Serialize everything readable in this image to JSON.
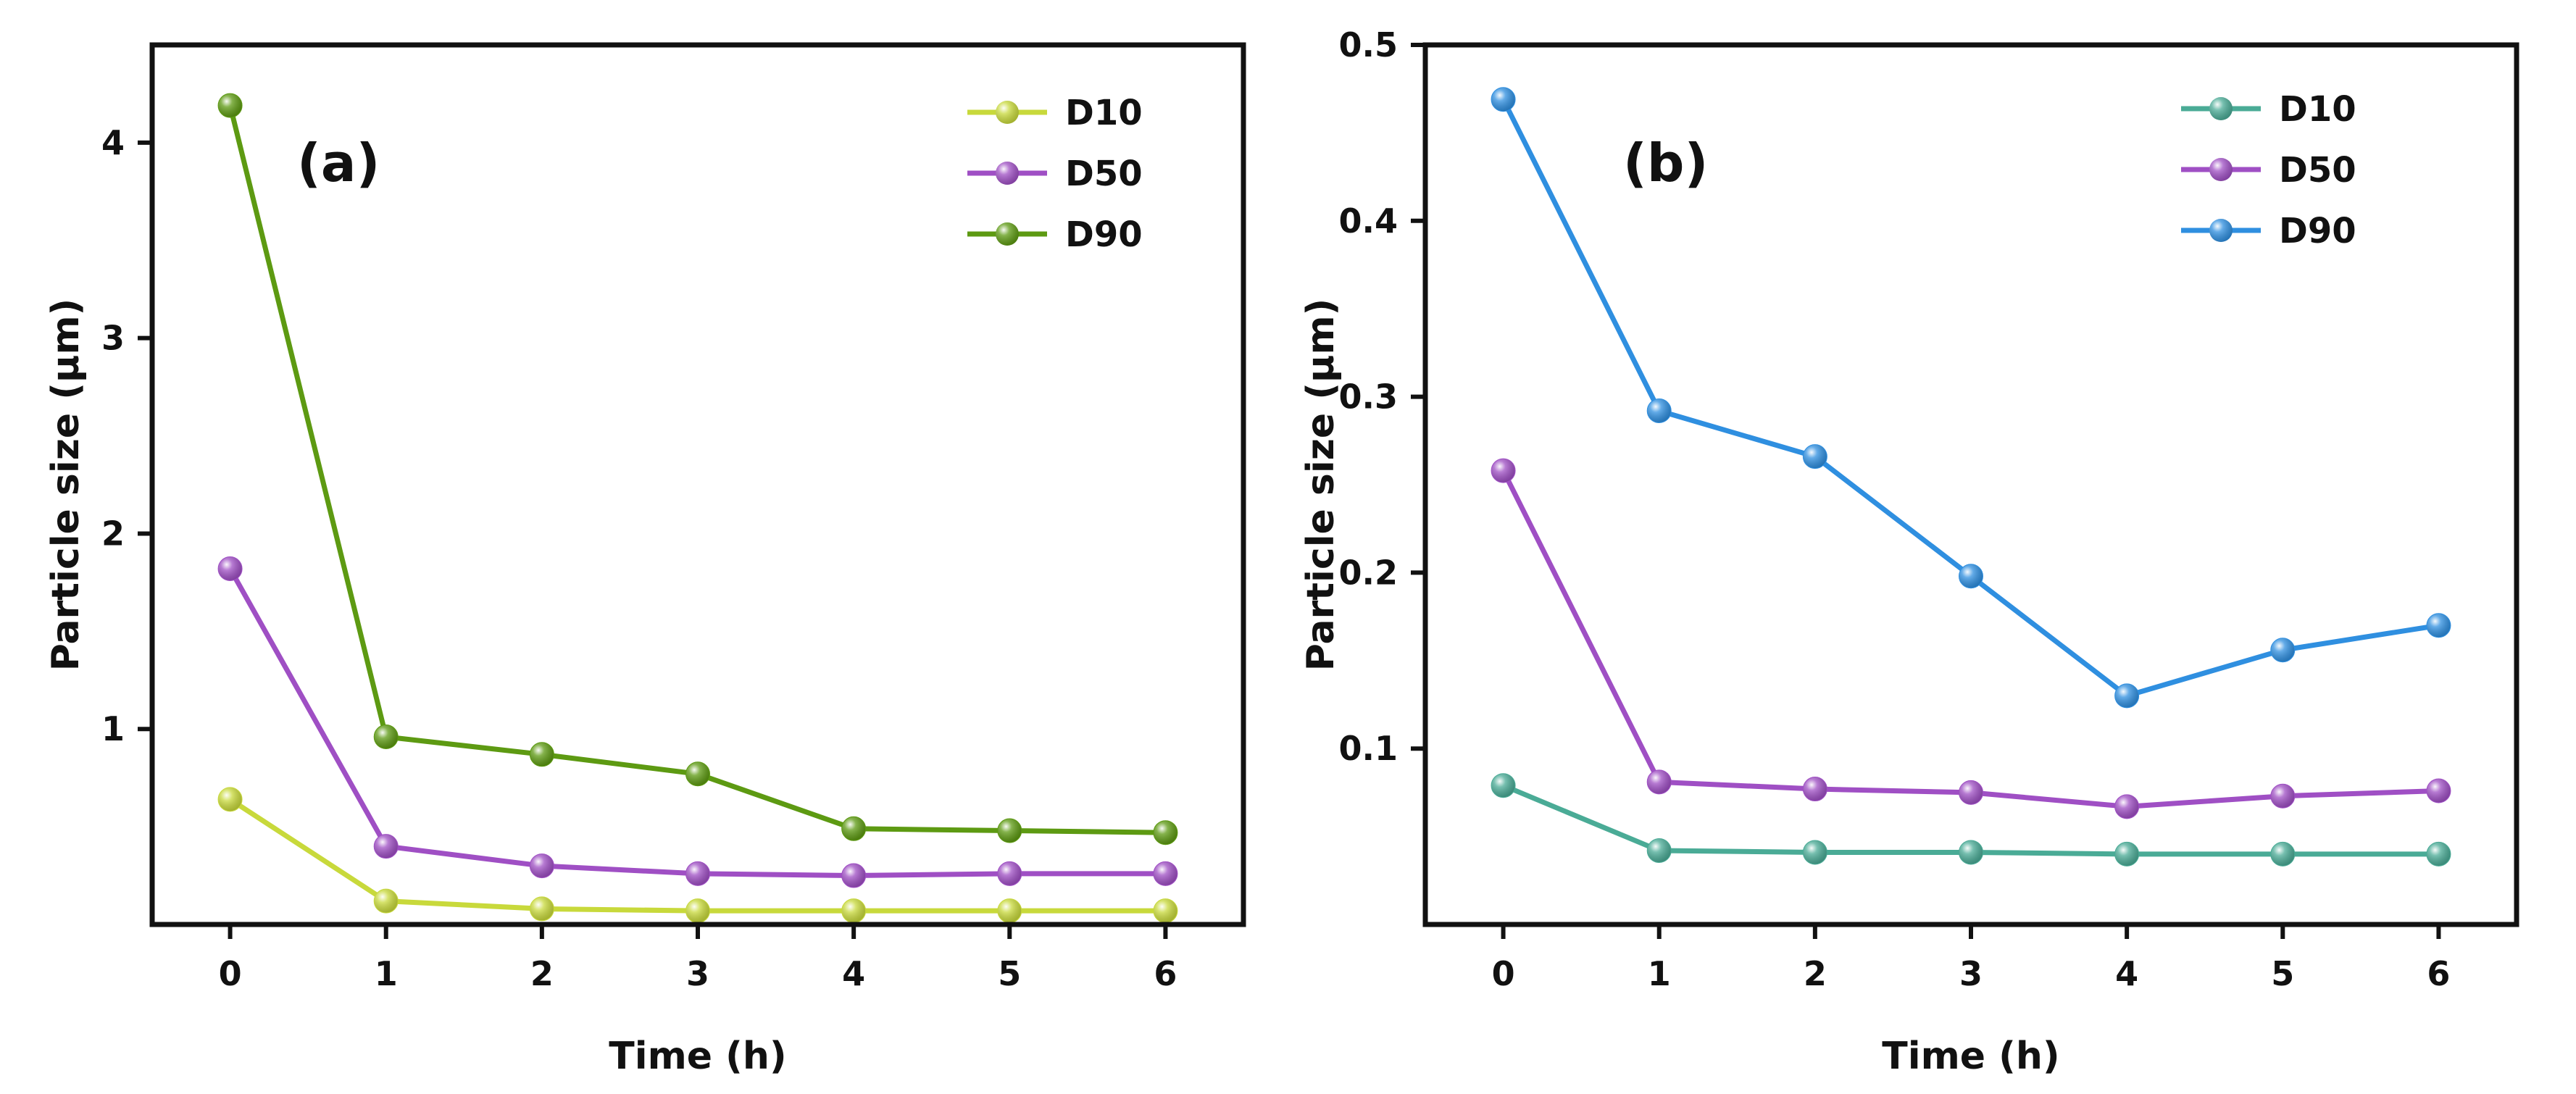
{
  "chart_data": [
    {
      "type": "line",
      "panel_label": "(a)",
      "title": "",
      "xlabel": "Time (h)",
      "ylabel": "Particle size (μm)",
      "x": [
        0,
        1,
        2,
        3,
        4,
        5,
        6
      ],
      "xlim": [
        -0.5,
        6.5
      ],
      "ylim": [
        0,
        4.5
      ],
      "xticks": [
        "0",
        "1",
        "2",
        "3",
        "4",
        "5",
        "6"
      ],
      "yticks": [
        1,
        2,
        3,
        4
      ],
      "ytick_labels": [
        "1",
        "2",
        "3",
        "4"
      ],
      "legend_position": "top-right",
      "grid": false,
      "series": [
        {
          "name": "D10",
          "color": "#c8d93b",
          "values": [
            0.64,
            0.12,
            0.08,
            0.07,
            0.07,
            0.07,
            0.07
          ]
        },
        {
          "name": "D50",
          "color": "#9f4fc4",
          "values": [
            1.82,
            0.4,
            0.3,
            0.26,
            0.25,
            0.26,
            0.26
          ]
        },
        {
          "name": "D90",
          "color": "#5d9a12",
          "values": [
            4.19,
            0.96,
            0.87,
            0.77,
            0.49,
            0.48,
            0.47
          ]
        }
      ]
    },
    {
      "type": "line",
      "panel_label": "(b)",
      "title": "",
      "xlabel": "Time (h)",
      "ylabel": "Particle size (μm)",
      "x": [
        0,
        1,
        2,
        3,
        4,
        5,
        6
      ],
      "xlim": [
        -0.5,
        6.5
      ],
      "ylim": [
        0,
        0.5
      ],
      "xticks": [
        "0",
        "1",
        "2",
        "3",
        "4",
        "5",
        "6"
      ],
      "yticks": [
        0.1,
        0.2,
        0.3,
        0.4,
        0.5
      ],
      "ytick_labels": [
        "0.1",
        "0.2",
        "0.3",
        "0.4",
        "0.5"
      ],
      "legend_position": "top-right",
      "grid": false,
      "series": [
        {
          "name": "D10",
          "color": "#4aab96",
          "values": [
            0.079,
            0.042,
            0.041,
            0.041,
            0.04,
            0.04,
            0.04
          ]
        },
        {
          "name": "D50",
          "color": "#9f4fc4",
          "values": [
            0.258,
            0.081,
            0.077,
            0.075,
            0.067,
            0.073,
            0.076
          ]
        },
        {
          "name": "D90",
          "color": "#2f8fe0",
          "values": [
            0.469,
            0.292,
            0.266,
            0.198,
            0.13,
            0.156,
            0.17
          ]
        }
      ]
    }
  ]
}
